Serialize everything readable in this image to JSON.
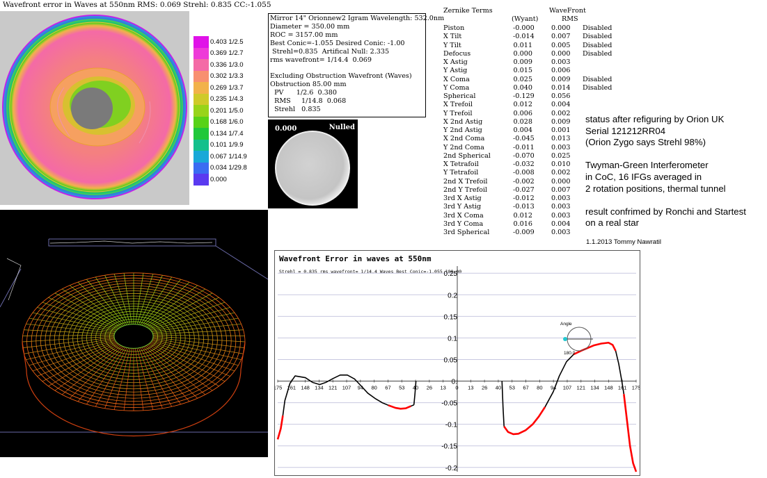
{
  "title": "Wavefront error in Waves at 550nm  RMS: 0.069 Strehl: 0.835 CC:-1.055",
  "scale": [
    {
      "label": "0.403 1/2.5",
      "color": "#e012e8"
    },
    {
      "label": "0.369 1/2.7",
      "color": "#ee3ad8"
    },
    {
      "label": "0.336 1/3.0",
      "color": "#f46aa6"
    },
    {
      "label": "0.302 1/3.3",
      "color": "#f89070"
    },
    {
      "label": "0.269 1/3.7",
      "color": "#f2b24a"
    },
    {
      "label": "0.235 1/4.3",
      "color": "#cfca2a"
    },
    {
      "label": "0.201 1/5.0",
      "color": "#98d41a"
    },
    {
      "label": "0.168 1/6.0",
      "color": "#58d218"
    },
    {
      "label": "0.134 1/7.4",
      "color": "#20c83a"
    },
    {
      "label": "0.101 1/9.9",
      "color": "#14c08c"
    },
    {
      "label": "0.067 1/14.9",
      "color": "#18a8d8"
    },
    {
      "label": "0.034 1/29.8",
      "color": "#3a6cf2"
    },
    {
      "label": "0.000",
      "color": "#5a3af0"
    }
  ],
  "info": [
    "Mirror 14\" Orionnew2 Igram Wavelength: 532.0nm",
    "Diameter = 350.00 mm",
    "ROC = 3157.00 mm",
    "Best Conic=-1.055 Desired Conic: -1.00",
    " Strehl=0.835  Artifical Null: 2.335",
    "rms wavefront= 1/14.4  0.069",
    "",
    "Excluding Obstruction Wavefront (Waves)",
    "Obstruction 85.00 mm",
    "  PV      1/2.6  0.380",
    "  RMS     1/14.8  0.068",
    "  Strehl   0.835"
  ],
  "null_image": {
    "value": "0.000",
    "label": "Nulled"
  },
  "zernike": {
    "header_name": "Zernike Terms",
    "header_wyant": "(Wyant)",
    "header_wavefront": "WaveFront",
    "header_rms": "RMS",
    "rows": [
      {
        "name": "Piston",
        "wyant": "-0.000",
        "rms": "0.000",
        "status": "Disabled"
      },
      {
        "name": "X Tilt",
        "wyant": "-0.014",
        "rms": "0.007",
        "status": "Disabled"
      },
      {
        "name": "Y Tilt",
        "wyant": "0.011",
        "rms": "0.005",
        "status": "Disabled"
      },
      {
        "name": "Defocus",
        "wyant": "0.000",
        "rms": "0.000",
        "status": "Disabled"
      },
      {
        "name": "X Astig",
        "wyant": "0.009",
        "rms": "0.003",
        "status": ""
      },
      {
        "name": "Y Astig",
        "wyant": "0.015",
        "rms": "0.006",
        "status": ""
      },
      {
        "name": "X Coma",
        "wyant": "0.025",
        "rms": "0.009",
        "status": "Disabled"
      },
      {
        "name": "Y Coma",
        "wyant": "0.040",
        "rms": "0.014",
        "status": "Disabled"
      },
      {
        "name": "Spherical",
        "wyant": "-0.129",
        "rms": "0.056",
        "status": ""
      },
      {
        "name": "X Trefoil",
        "wyant": "0.012",
        "rms": "0.004",
        "status": ""
      },
      {
        "name": "Y Trefoil",
        "wyant": "0.006",
        "rms": "0.002",
        "status": ""
      },
      {
        "name": "X 2nd Astig",
        "wyant": "0.028",
        "rms": "0.009",
        "status": ""
      },
      {
        "name": "Y 2nd Astig",
        "wyant": "0.004",
        "rms": "0.001",
        "status": ""
      },
      {
        "name": "X 2nd Coma",
        "wyant": "-0.045",
        "rms": "0.013",
        "status": ""
      },
      {
        "name": "Y 2nd Coma",
        "wyant": "-0.011",
        "rms": "0.003",
        "status": ""
      },
      {
        "name": "2nd Spherical",
        "wyant": "-0.070",
        "rms": "0.025",
        "status": ""
      },
      {
        "name": "X Tetrafoil",
        "wyant": "-0.032",
        "rms": "0.010",
        "status": ""
      },
      {
        "name": "Y Tetrafoil",
        "wyant": "-0.008",
        "rms": "0.002",
        "status": ""
      },
      {
        "name": "2nd X Trefoil",
        "wyant": "-0.002",
        "rms": "0.000",
        "status": ""
      },
      {
        "name": "2nd Y Trefoil",
        "wyant": "-0.027",
        "rms": "0.007",
        "status": ""
      },
      {
        "name": "3rd X Astig",
        "wyant": "-0.012",
        "rms": "0.003",
        "status": ""
      },
      {
        "name": "3rd Y Astig",
        "wyant": "-0.013",
        "rms": "0.003",
        "status": ""
      },
      {
        "name": "3rd X Coma",
        "wyant": "0.012",
        "rms": "0.003",
        "status": ""
      },
      {
        "name": "3rd Y Coma",
        "wyant": "0.016",
        "rms": "0.004",
        "status": ""
      },
      {
        "name": "3rd Spherical",
        "wyant": "-0.009",
        "rms": "0.003",
        "status": ""
      }
    ]
  },
  "notes": [
    "status after refiguring by Orion UK",
    "Serial 121212RR04",
    "(Orion Zygo says Strehl 98%)",
    "",
    "Twyman-Green Interferometer",
    "in CoC, 16 IFGs averaged in",
    "2 rotation positions, thermal tunnel",
    "",
    "result confrimed by Ronchi and Startest",
    "on a real star"
  ],
  "credit": "1.1.2013 Tommy Nawratil",
  "chart_data": {
    "type": "line",
    "title": "Wavefront Error in waves at 550nm",
    "subtitle": "Strehl = 0.835 rms wavefront= 1/14.4 Waves Best Conic=-1.055 180.00",
    "xlabel": "",
    "ylabel": "",
    "ylim": [
      -0.21,
      0.26
    ],
    "x_ticks": [
      "175",
      "161",
      "148",
      "134",
      "121",
      "107",
      "94",
      "80",
      "67",
      "53",
      "40",
      "26",
      "13",
      "0",
      "13",
      "26",
      "40",
      "53",
      "67",
      "80",
      "94",
      "107",
      "121",
      "134",
      "148",
      "161",
      "175"
    ],
    "y_ticks": [
      {
        "value": 0.25,
        "label": "0.25"
      },
      {
        "value": 0.2,
        "label": "0.2"
      },
      {
        "value": 0.15,
        "label": "0.15"
      },
      {
        "value": 0.1,
        "label": "0.1"
      },
      {
        "value": 0.05,
        "label": "0.05"
      },
      {
        "value": 0.0,
        "label": "0."
      },
      {
        "value": -0.05,
        "label": "-0.05"
      },
      {
        "value": -0.1,
        "label": "-0.1"
      },
      {
        "value": -0.15,
        "label": "-0.15"
      },
      {
        "value": -0.2,
        "label": "-0.2"
      }
    ],
    "angle_widget": {
      "label": "Angle",
      "value": "180.0"
    },
    "series": [
      {
        "color": "#000000",
        "x": [
          -170,
          -168,
          -163,
          -158,
          -148,
          -141,
          -134,
          -128,
          -121,
          -114,
          -107,
          -100,
          -94,
          -87,
          -80,
          -73,
          -67,
          -60,
          -55,
          -50,
          -45,
          -42
        ],
        "y": [
          -0.08,
          -0.045,
          -0.005,
          0.012,
          0.008,
          -0.003,
          -0.008,
          -0.003,
          0.006,
          0.014,
          0.014,
          0.005,
          -0.01,
          -0.028,
          -0.04,
          -0.05,
          -0.056,
          -0.062,
          -0.064,
          -0.063,
          -0.058,
          -0.055
        ]
      },
      {
        "color": "#ff0000",
        "x": [
          -175,
          -172,
          -170
        ],
        "y": [
          -0.135,
          -0.11,
          -0.08
        ]
      },
      {
        "color": "#ff0000",
        "x": [
          -67,
          -60,
          -55,
          -50,
          -45
        ],
        "y": [
          -0.056,
          -0.062,
          -0.064,
          -0.063,
          -0.058
        ]
      },
      {
        "color": "#000000",
        "x": [
          -42,
          -41,
          -40
        ],
        "y": [
          -0.055,
          -0.03,
          0.0
        ]
      },
      {
        "color": "#000000",
        "x": [
          44,
          45,
          46
        ],
        "y": [
          0.0,
          -0.06,
          -0.105
        ]
      },
      {
        "color": "#ff0000",
        "x": [
          46,
          50,
          55,
          60,
          67,
          74,
          80,
          86
        ],
        "y": [
          -0.105,
          -0.118,
          -0.123,
          -0.122,
          -0.114,
          -0.1,
          -0.082,
          -0.06
        ]
      },
      {
        "color": "#000000",
        "x": [
          86,
          94,
          100,
          107,
          114
        ],
        "y": [
          -0.06,
          -0.025,
          0.012,
          0.045,
          0.062
        ]
      },
      {
        "color": "#ff0000",
        "x": [
          114,
          121,
          128,
          134,
          141,
          148,
          152,
          155
        ],
        "y": [
          0.062,
          0.07,
          0.077,
          0.083,
          0.087,
          0.089,
          0.084,
          0.07
        ]
      },
      {
        "color": "#000000",
        "x": [
          155,
          158,
          161,
          163
        ],
        "y": [
          0.07,
          0.04,
          0.0,
          -0.03
        ]
      },
      {
        "color": "#ff0000",
        "x": [
          163,
          166,
          169,
          172,
          175
        ],
        "y": [
          -0.03,
          -0.09,
          -0.15,
          -0.19,
          -0.21
        ]
      }
    ]
  }
}
